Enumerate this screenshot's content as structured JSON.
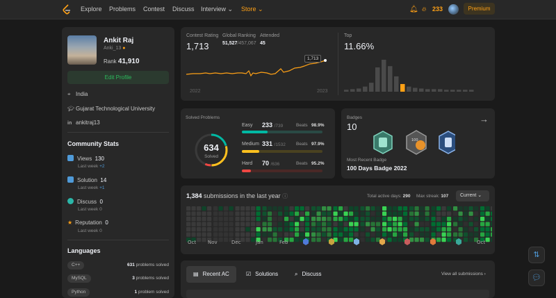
{
  "nav": {
    "items": [
      "Explore",
      "Problems",
      "Contest",
      "Discuss",
      "Interview",
      "Store"
    ],
    "coins": "233",
    "premium": "Premium"
  },
  "profile": {
    "name": "Ankit Raj",
    "username": "Anki_13",
    "rank_label": "Rank",
    "rank": "41,910",
    "edit_label": "Edit Profile",
    "location": "India",
    "school": "Gujarat Technological University",
    "linkedin": "ankitraj13"
  },
  "community": {
    "title": "Community Stats",
    "items": [
      {
        "label": "Views",
        "value": "130",
        "lw": "Last week",
        "delta": "+2",
        "color": "#4f9ad8"
      },
      {
        "label": "Solution",
        "value": "14",
        "lw": "Last week",
        "delta": "+1",
        "color": "#4f9ad8"
      },
      {
        "label": "Discuss",
        "value": "0",
        "lw": "Last week",
        "delta": "0",
        "color": "#2bb6a8"
      },
      {
        "label": "Reputation",
        "value": "0",
        "lw": "Last week",
        "delta": "0",
        "color": "#ffa116"
      }
    ]
  },
  "languages": {
    "title": "Languages",
    "items": [
      {
        "name": "C++",
        "count": "631",
        "suffix": "problems solved"
      },
      {
        "name": "MySQL",
        "count": "3",
        "suffix": "problems solved"
      },
      {
        "name": "Python",
        "count": "1",
        "suffix": "problem solved"
      }
    ]
  },
  "rating": {
    "contest_label": "Contest Rating",
    "contest_value": "1,713",
    "global_label": "Global Ranking",
    "global_value": "51,527",
    "global_total": "/457,067",
    "attended_label": "Attended",
    "attended_value": "45",
    "tooltip": "1,713",
    "year_start": "2022",
    "year_end": "2023",
    "top_label": "Top",
    "top_value": "11.66%",
    "histogram": [
      3,
      4,
      5,
      8,
      14,
      38,
      50,
      40,
      24,
      12,
      8,
      6,
      5,
      4,
      4,
      4,
      3,
      3,
      3,
      3,
      3
    ],
    "highlight_index": 9
  },
  "solved": {
    "title": "Solved Problems",
    "total": "634",
    "total_label": "Solved",
    "difficulty": [
      {
        "name": "Easy",
        "solved": "233",
        "total": "/739",
        "beats_label": "Beats",
        "beats": "98.9%",
        "color": "#00b8a3",
        "track": "#2a4a45",
        "fraction": 0.315
      },
      {
        "name": "Medium",
        "solved": "331",
        "total": "/1532",
        "beats_label": "Beats",
        "beats": "97.9%",
        "color": "#ffc01e",
        "track": "#4a4220",
        "fraction": 0.216
      },
      {
        "name": "Hard",
        "solved": "70",
        "total": "/636",
        "beats_label": "Beats",
        "beats": "95.2%",
        "color": "#ef4743",
        "track": "#4a2826",
        "fraction": 0.11
      }
    ],
    "ring": {
      "easy": 0.367,
      "medium": 0.522,
      "hard": 0.11
    }
  },
  "badges": {
    "title": "Badges",
    "count": "10",
    "recent_label": "Most Recent Badge",
    "recent_name": "100 Days Badge 2022"
  },
  "submissions": {
    "count": "1,384",
    "label": "submissions in the last year",
    "active_label": "Total active days:",
    "active_value": "290",
    "streak_label": "Max streak:",
    "streak_value": "107",
    "select": "Current",
    "months": [
      "Oct",
      "Nov",
      "Dec",
      "Jan",
      "Feb",
      "",
      "",
      "",
      "",
      "",
      "",
      "",
      "Oct"
    ]
  },
  "recent": {
    "tabs": [
      "Recent AC",
      "Solutions",
      "Discuss"
    ],
    "view_all": "View all submissions"
  },
  "colors": {
    "accent": "#ffa116",
    "green": "#2cbb5d",
    "card": "#282828"
  }
}
